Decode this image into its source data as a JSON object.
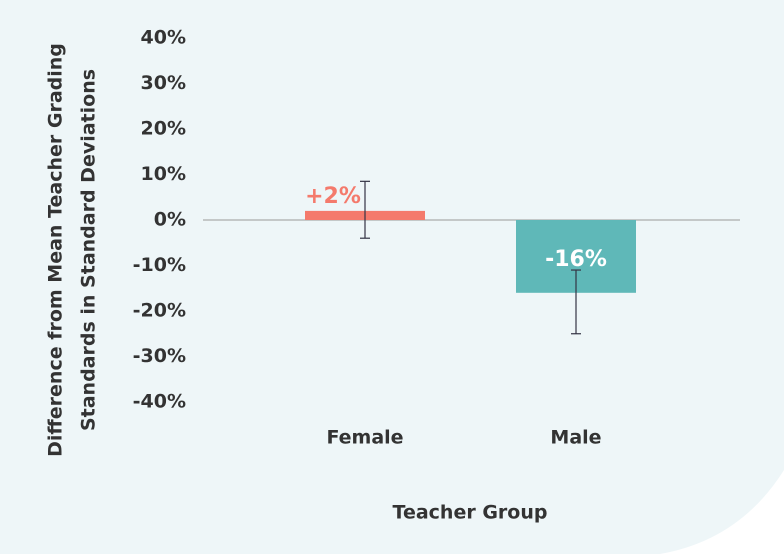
{
  "chart_data": {
    "type": "bar",
    "x_label": "Teacher Group",
    "y_label": [
      "Difference from Mean Teacher Grading",
      "Standards in Standard Deviations"
    ],
    "categories": [
      "Female",
      "Male"
    ],
    "values": [
      2,
      -16
    ],
    "value_labels": [
      "+2%",
      "-16%"
    ],
    "error_low": [
      -4,
      -25
    ],
    "error_high": [
      8.5,
      -11
    ],
    "colors": [
      "#f47a6c",
      "#5fb8b8"
    ],
    "ylim": [
      -40,
      40
    ],
    "yticks": [
      {
        "value": 40,
        "label": "40%"
      },
      {
        "value": 30,
        "label": "30%"
      },
      {
        "value": 20,
        "label": "20%"
      },
      {
        "value": 10,
        "label": "10%"
      },
      {
        "value": 0,
        "label": "0%"
      },
      {
        "value": -10,
        "label": "-10%"
      },
      {
        "value": -20,
        "label": "-20%"
      },
      {
        "value": -30,
        "label": "-30%"
      },
      {
        "value": -40,
        "label": "-40%"
      }
    ],
    "grid": false
  }
}
